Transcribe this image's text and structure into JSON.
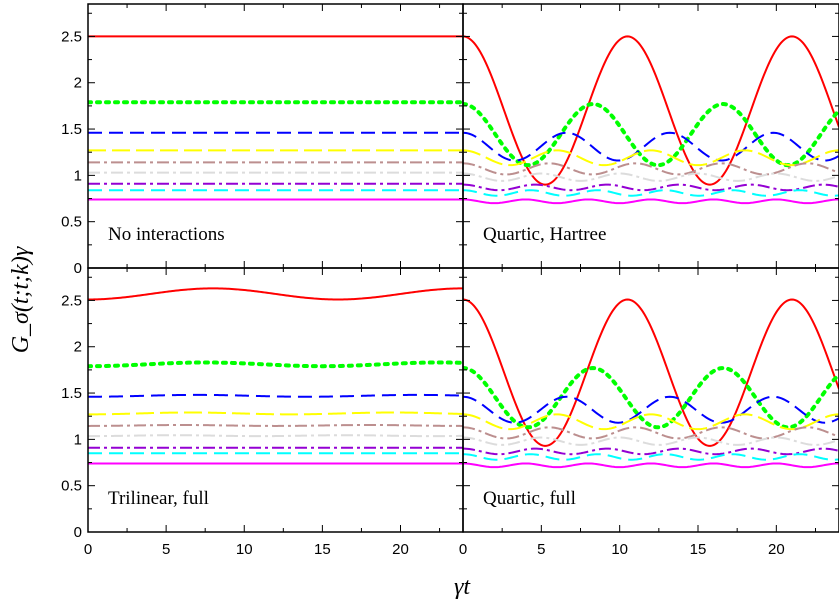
{
  "chart_data": {
    "type": "line",
    "xlabel": "γt",
    "ylabel": "G_σ(t;t;k)γ",
    "xlim": [
      0,
      24
    ],
    "ylim": [
      0,
      2.85
    ],
    "x_ticks": [
      "0",
      "5",
      "10",
      "15",
      "20"
    ],
    "y_ticks": [
      "0",
      "0.5",
      "1",
      "1.5",
      "2",
      "2.5"
    ],
    "panels": [
      {
        "label": "No interactions",
        "series": [
          {
            "color": "#ff0000",
            "dash": "solid",
            "base": 2.5,
            "amp": 0,
            "per": 10,
            "phase": 0
          },
          {
            "color": "#00ff00",
            "dash": "dotted",
            "base": 1.79,
            "amp": 0,
            "per": 10,
            "phase": 0
          },
          {
            "color": "#0000ff",
            "dash": "dashed",
            "base": 1.46,
            "amp": 0,
            "per": 10,
            "phase": 0
          },
          {
            "color": "#ffff00",
            "dash": "longdash",
            "base": 1.27,
            "amp": 0,
            "per": 10,
            "phase": 0
          },
          {
            "color": "#bc8f8f",
            "dash": "dashdot",
            "base": 1.14,
            "amp": 0,
            "per": 10,
            "phase": 0
          },
          {
            "color": "#dcdcdc",
            "dash": "dashdot",
            "base": 1.03,
            "amp": 0,
            "per": 10,
            "phase": 0
          },
          {
            "color": "#9400d3",
            "dash": "dashdot",
            "base": 0.91,
            "amp": 0,
            "per": 10,
            "phase": 0
          },
          {
            "color": "#00ffff",
            "dash": "dashed",
            "base": 0.84,
            "amp": 0,
            "per": 10,
            "phase": 0
          },
          {
            "color": "#ff00ff",
            "dash": "solid",
            "base": 0.74,
            "amp": 0,
            "per": 10,
            "phase": 0
          }
        ]
      },
      {
        "label": "Quartic, Hartree",
        "series": [
          {
            "color": "#ff0000",
            "dash": "solid",
            "base": 1.7,
            "amp": 0.8,
            "per": 10.5,
            "phase": 0
          },
          {
            "color": "#00ff00",
            "dash": "dotted",
            "base": 1.44,
            "amp": 0.33,
            "per": 8.3,
            "phase": 0
          },
          {
            "color": "#0000ff",
            "dash": "dashed",
            "base": 1.31,
            "amp": 0.15,
            "per": 6.6,
            "phase": 0
          },
          {
            "color": "#ffff00",
            "dash": "longdash",
            "base": 1.19,
            "amp": 0.08,
            "per": 6.0,
            "phase": 0
          },
          {
            "color": "#bc8f8f",
            "dash": "dashdot",
            "base": 1.07,
            "amp": 0.06,
            "per": 5.5,
            "phase": 0
          },
          {
            "color": "#dcdcdc",
            "dash": "dashdot",
            "base": 0.98,
            "amp": 0.04,
            "per": 5.0,
            "phase": 0
          },
          {
            "color": "#9400d3",
            "dash": "dashdot",
            "base": 0.87,
            "amp": 0.03,
            "per": 4.6,
            "phase": 0
          },
          {
            "color": "#00ffff",
            "dash": "dashed",
            "base": 0.81,
            "amp": 0.03,
            "per": 4.3,
            "phase": 0
          },
          {
            "color": "#ff00ff",
            "dash": "solid",
            "base": 0.72,
            "amp": 0.02,
            "per": 4.0,
            "phase": 0
          }
        ]
      },
      {
        "label": "Trilinear, full",
        "series": [
          {
            "color": "#ff0000",
            "dash": "solid",
            "base": 2.57,
            "amp": -0.06,
            "per": 16,
            "phase": 0
          },
          {
            "color": "#00ff00",
            "dash": "dotted",
            "base": 1.81,
            "amp": -0.02,
            "per": 15,
            "phase": 0
          },
          {
            "color": "#0000ff",
            "dash": "dashed",
            "base": 1.47,
            "amp": -0.01,
            "per": 14,
            "phase": 0
          },
          {
            "color": "#ffff00",
            "dash": "longdash",
            "base": 1.28,
            "amp": -0.01,
            "per": 13,
            "phase": 0
          },
          {
            "color": "#bc8f8f",
            "dash": "dashdot",
            "base": 1.15,
            "amp": -0.005,
            "per": 12,
            "phase": 0
          },
          {
            "color": "#dcdcdc",
            "dash": "dashdot",
            "base": 1.04,
            "amp": -0.005,
            "per": 11,
            "phase": 0
          },
          {
            "color": "#9400d3",
            "dash": "dashdot",
            "base": 0.91,
            "amp": 0,
            "per": 10,
            "phase": 0
          },
          {
            "color": "#00ffff",
            "dash": "dashed",
            "base": 0.85,
            "amp": 0,
            "per": 10,
            "phase": 0
          },
          {
            "color": "#ff00ff",
            "dash": "solid",
            "base": 0.74,
            "amp": 0,
            "per": 10,
            "phase": 0
          }
        ]
      },
      {
        "label": "Quartic, full",
        "series": [
          {
            "color": "#ff0000",
            "dash": "solid",
            "base": 1.72,
            "amp": 0.79,
            "per": 10.5,
            "phase": 0
          },
          {
            "color": "#00ff00",
            "dash": "dotted",
            "base": 1.45,
            "amp": 0.32,
            "per": 8.3,
            "phase": 0
          },
          {
            "color": "#0000ff",
            "dash": "dashed",
            "base": 1.32,
            "amp": 0.14,
            "per": 6.6,
            "phase": 0
          },
          {
            "color": "#ffff00",
            "dash": "longdash",
            "base": 1.19,
            "amp": 0.08,
            "per": 6.0,
            "phase": 0
          },
          {
            "color": "#bc8f8f",
            "dash": "dashdot",
            "base": 1.07,
            "amp": 0.06,
            "per": 5.5,
            "phase": 0
          },
          {
            "color": "#dcdcdc",
            "dash": "dashdot",
            "base": 0.98,
            "amp": 0.04,
            "per": 5.0,
            "phase": 0
          },
          {
            "color": "#9400d3",
            "dash": "dashdot",
            "base": 0.87,
            "amp": 0.03,
            "per": 4.6,
            "phase": 0
          },
          {
            "color": "#00ffff",
            "dash": "dashed",
            "base": 0.81,
            "amp": 0.03,
            "per": 4.3,
            "phase": 0
          },
          {
            "color": "#ff00ff",
            "dash": "solid",
            "base": 0.72,
            "amp": 0.02,
            "per": 4.0,
            "phase": 0
          }
        ]
      }
    ]
  }
}
